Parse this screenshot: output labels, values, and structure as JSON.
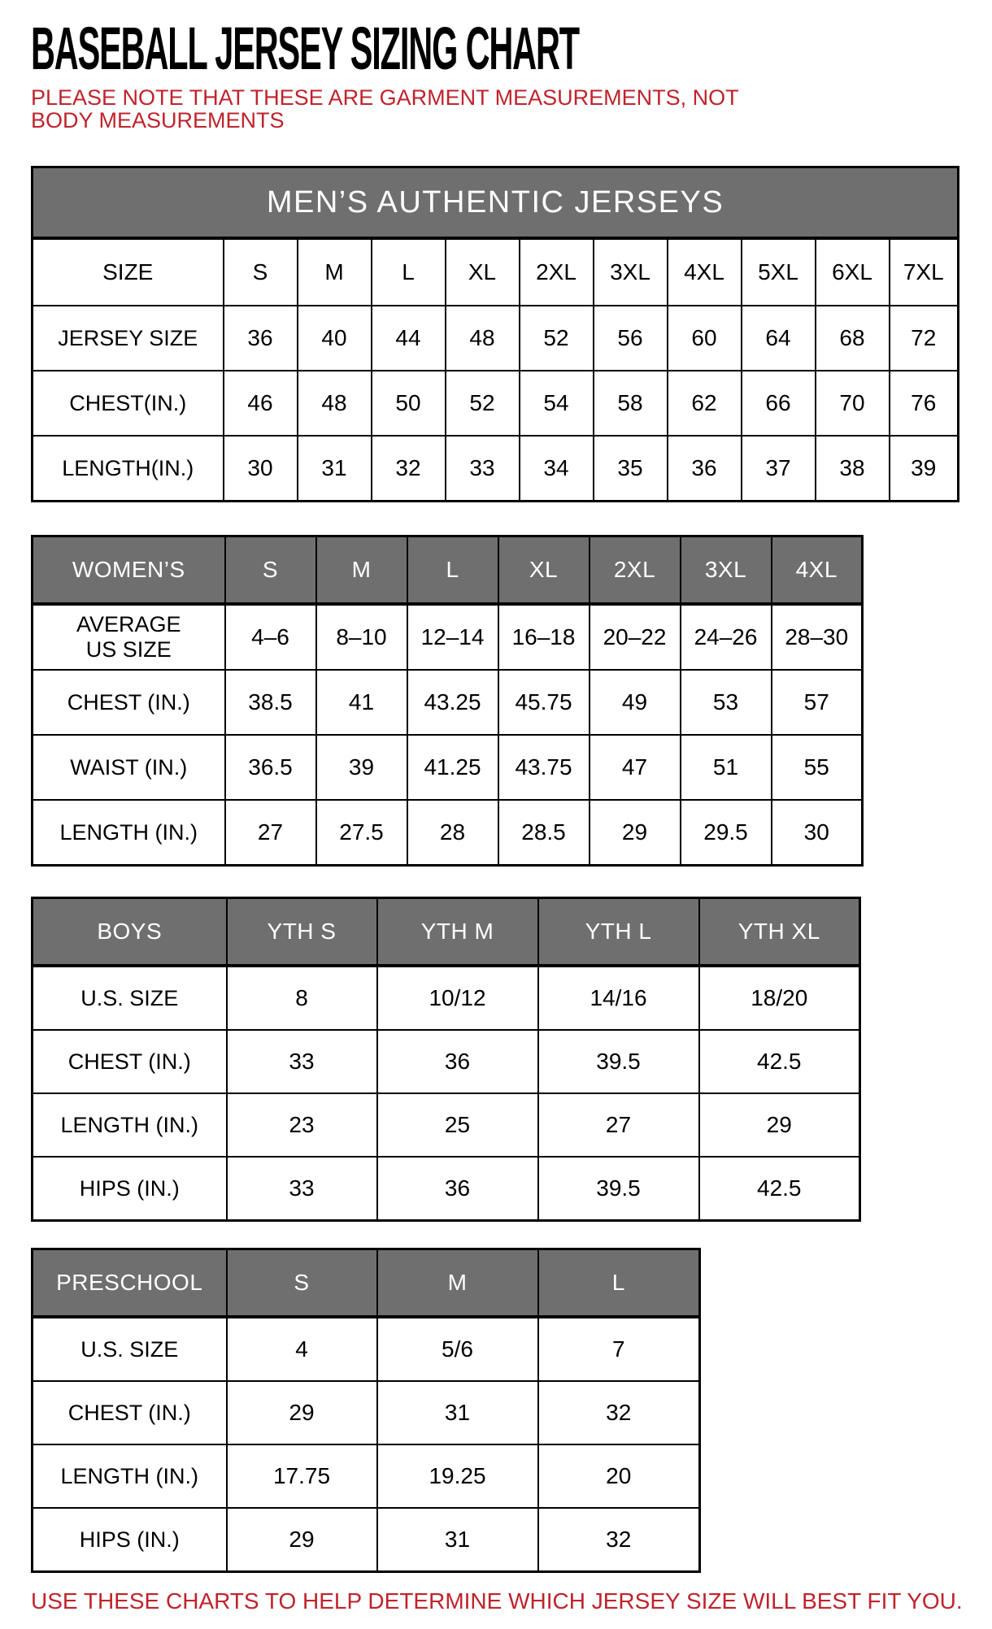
{
  "page": {
    "title": "BASEBALL JERSEY SIZING CHART",
    "note": "PLEASE NOTE THAT THESE ARE GARMENT MEASUREMENTS, NOT BODY MEASUREMENTS",
    "footer": "USE THESE CHARTS TO HELP DETERMINE WHICH JERSEY SIZE WILL BEST FIT YOU.",
    "colors": {
      "accent_red": "#C0232C",
      "header_gray": "#6F6F6F",
      "border_black": "#000000"
    }
  },
  "tables": [
    {
      "id": "mens",
      "banner": "MEN’S AUTHENTIC JERSEYS",
      "header": [
        "SIZE",
        "S",
        "M",
        "L",
        "XL",
        "2XL",
        "3XL",
        "4XL",
        "5XL",
        "6XL",
        "7XL"
      ],
      "rows": [
        {
          "label": "JERSEY SIZE",
          "values": [
            "36",
            "40",
            "44",
            "48",
            "52",
            "56",
            "60",
            "64",
            "68",
            "72"
          ]
        },
        {
          "label": "CHEST(IN.)",
          "values": [
            "46",
            "48",
            "50",
            "52",
            "54",
            "58",
            "62",
            "66",
            "70",
            "76"
          ]
        },
        {
          "label": "LENGTH(IN.)",
          "values": [
            "30",
            "31",
            "32",
            "33",
            "34",
            "35",
            "36",
            "37",
            "38",
            "39"
          ]
        }
      ]
    },
    {
      "id": "womens",
      "header": [
        "WOMEN’S",
        "S",
        "M",
        "L",
        "XL",
        "2XL",
        "3XL",
        "4XL"
      ],
      "rows": [
        {
          "label": "AVERAGE\nUS SIZE",
          "values": [
            "4–6",
            "8–10",
            "12–14",
            "16–18",
            "20–22",
            "24–26",
            "28–30"
          ]
        },
        {
          "label": "CHEST (IN.)",
          "values": [
            "38.5",
            "41",
            "43.25",
            "45.75",
            "49",
            "53",
            "57"
          ]
        },
        {
          "label": "WAIST (IN.)",
          "values": [
            "36.5",
            "39",
            "41.25",
            "43.75",
            "47",
            "51",
            "55"
          ]
        },
        {
          "label": "LENGTH (IN.)",
          "values": [
            "27",
            "27.5",
            "28",
            "28.5",
            "29",
            "29.5",
            "30"
          ]
        }
      ]
    },
    {
      "id": "boys",
      "header": [
        "BOYS",
        "YTH S",
        "YTH M",
        "YTH L",
        "YTH XL"
      ],
      "rows": [
        {
          "label": "U.S. SIZE",
          "values": [
            "8",
            "10/12",
            "14/16",
            "18/20"
          ]
        },
        {
          "label": "CHEST (IN.)",
          "values": [
            "33",
            "36",
            "39.5",
            "42.5"
          ]
        },
        {
          "label": "LENGTH (IN.)",
          "values": [
            "23",
            "25",
            "27",
            "29"
          ]
        },
        {
          "label": "HIPS (IN.)",
          "values": [
            "33",
            "36",
            "39.5",
            "42.5"
          ]
        }
      ]
    },
    {
      "id": "preschool",
      "header": [
        "PRESCHOOL",
        "S",
        "M",
        "L"
      ],
      "rows": [
        {
          "label": "U.S. SIZE",
          "values": [
            "4",
            "5/6",
            "7"
          ]
        },
        {
          "label": "CHEST (IN.)",
          "values": [
            "29",
            "31",
            "32"
          ]
        },
        {
          "label": "LENGTH (IN.)",
          "values": [
            "17.75",
            "19.25",
            "20"
          ]
        },
        {
          "label": "HIPS (IN.)",
          "values": [
            "29",
            "31",
            "32"
          ]
        }
      ]
    }
  ]
}
